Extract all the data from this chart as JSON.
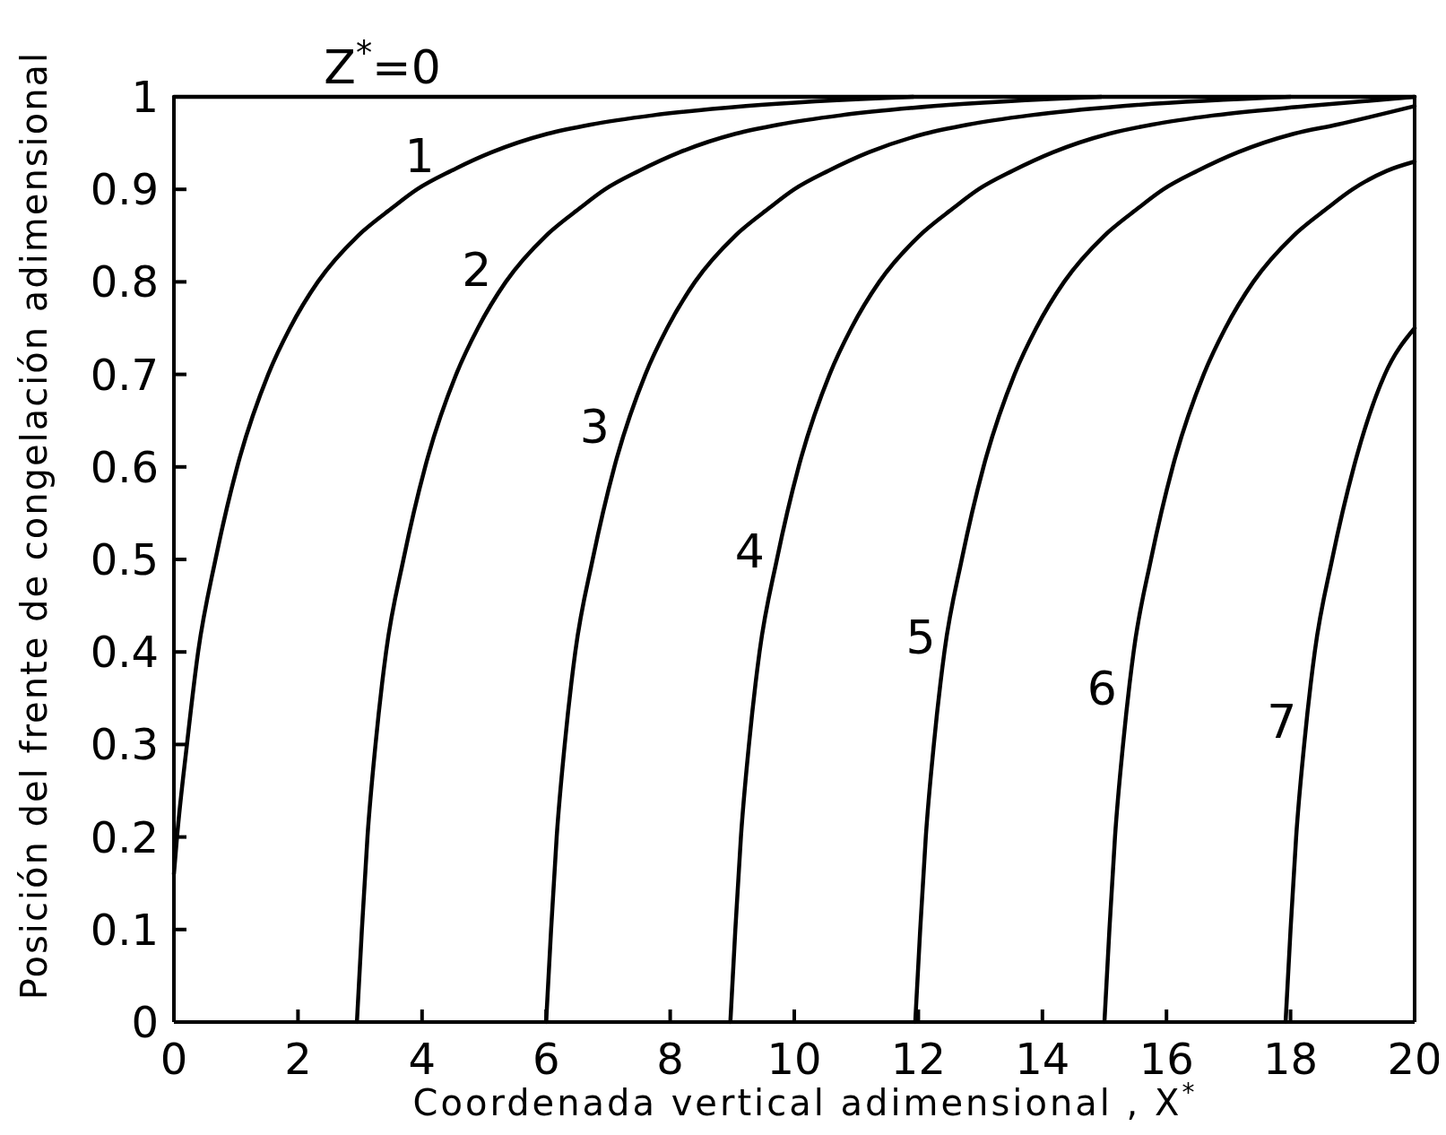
{
  "chart_data": {
    "type": "line",
    "xlabel": "Coordenada vertical adimensional , X$^{*}$",
    "ylabel": "Posición del frente de congelación adimensional",
    "xlim": [
      0,
      20
    ],
    "ylim": [
      0,
      1
    ],
    "xticks": [
      0,
      2,
      4,
      6,
      8,
      10,
      12,
      14,
      16,
      18,
      20
    ],
    "yticks": [
      0,
      0.1,
      0.2,
      0.3,
      0.4,
      0.5,
      0.6,
      0.7,
      0.8,
      0.9,
      1
    ],
    "marker": "none",
    "line_style": "solid",
    "series": [
      {
        "name": "Z$^{*}$=0",
        "color": "#000000",
        "x": [
          0,
          20
        ],
        "values": [
          1,
          1
        ]
      },
      {
        "name": "1",
        "color": "#000000",
        "x": [
          0,
          0.05,
          0.21,
          0.39,
          0.67,
          1.02,
          1.52,
          1.87,
          2.32,
          2.97,
          3.52,
          3.92,
          4.47,
          5.12,
          6.02,
          6.72,
          7.72,
          9.22,
          11.92
        ],
        "values": [
          0.16,
          0.2,
          0.3,
          0.4,
          0.5,
          0.6,
          0.7,
          0.75,
          0.8,
          0.85,
          0.88,
          0.9,
          0.92,
          0.94,
          0.96,
          0.97,
          0.98,
          0.99,
          1.0
        ]
      },
      {
        "name": "2",
        "color": "#000000",
        "x": [
          2.95,
          3.03,
          3.12,
          3.25,
          3.42,
          3.7,
          4.05,
          4.55,
          4.9,
          5.35,
          6.0,
          6.55,
          6.95,
          7.5,
          8.15,
          9.05,
          9.75,
          10.75,
          12.25,
          14.95
        ],
        "values": [
          0,
          0.1,
          0.2,
          0.3,
          0.4,
          0.5,
          0.6,
          0.7,
          0.75,
          0.8,
          0.85,
          0.88,
          0.9,
          0.92,
          0.94,
          0.96,
          0.97,
          0.98,
          0.99,
          1.0
        ]
      },
      {
        "name": "3",
        "color": "#000000",
        "x": [
          6.0,
          6.08,
          6.17,
          6.3,
          6.47,
          6.75,
          7.1,
          7.6,
          7.95,
          8.4,
          9.05,
          9.6,
          10.0,
          10.55,
          11.2,
          12.1,
          12.8,
          13.8,
          15.3,
          18.0
        ],
        "values": [
          0,
          0.1,
          0.2,
          0.3,
          0.4,
          0.5,
          0.6,
          0.7,
          0.75,
          0.8,
          0.85,
          0.88,
          0.9,
          0.92,
          0.94,
          0.96,
          0.97,
          0.98,
          0.99,
          1.0
        ]
      },
      {
        "name": "4",
        "color": "#000000",
        "x": [
          8.97,
          9.05,
          9.14,
          9.27,
          9.44,
          9.72,
          10.07,
          10.57,
          10.92,
          11.37,
          12.02,
          12.57,
          12.97,
          13.52,
          14.17,
          15.07,
          15.77,
          16.77,
          18.27,
          20
        ],
        "values": [
          0,
          0.1,
          0.2,
          0.3,
          0.4,
          0.5,
          0.6,
          0.7,
          0.75,
          0.8,
          0.85,
          0.88,
          0.9,
          0.92,
          0.94,
          0.96,
          0.97,
          0.98,
          0.99,
          1.0
        ]
      },
      {
        "name": "5",
        "color": "#000000",
        "x": [
          11.95,
          12.03,
          12.12,
          12.25,
          12.42,
          12.7,
          13.05,
          13.55,
          13.9,
          14.35,
          15.0,
          15.55,
          15.95,
          16.5,
          17.15,
          18.05,
          18.75,
          20
        ],
        "values": [
          0,
          0.1,
          0.2,
          0.3,
          0.4,
          0.5,
          0.6,
          0.7,
          0.75,
          0.8,
          0.85,
          0.88,
          0.9,
          0.92,
          0.94,
          0.96,
          0.97,
          0.99
        ]
      },
      {
        "name": "6",
        "color": "#000000",
        "x": [
          15.0,
          15.08,
          15.17,
          15.3,
          15.47,
          15.75,
          16.1,
          16.6,
          16.95,
          17.4,
          18.05,
          18.6,
          19.0,
          19.55,
          20
        ],
        "values": [
          0,
          0.1,
          0.2,
          0.3,
          0.4,
          0.5,
          0.6,
          0.7,
          0.75,
          0.8,
          0.85,
          0.88,
          0.9,
          0.92,
          0.93
        ]
      },
      {
        "name": "7",
        "color": "#000000",
        "x": [
          17.92,
          18.0,
          18.09,
          18.22,
          18.39,
          18.67,
          19.02,
          19.52,
          20
        ],
        "values": [
          0,
          0.1,
          0.2,
          0.3,
          0.4,
          0.5,
          0.6,
          0.7,
          0.75
        ]
      }
    ]
  }
}
